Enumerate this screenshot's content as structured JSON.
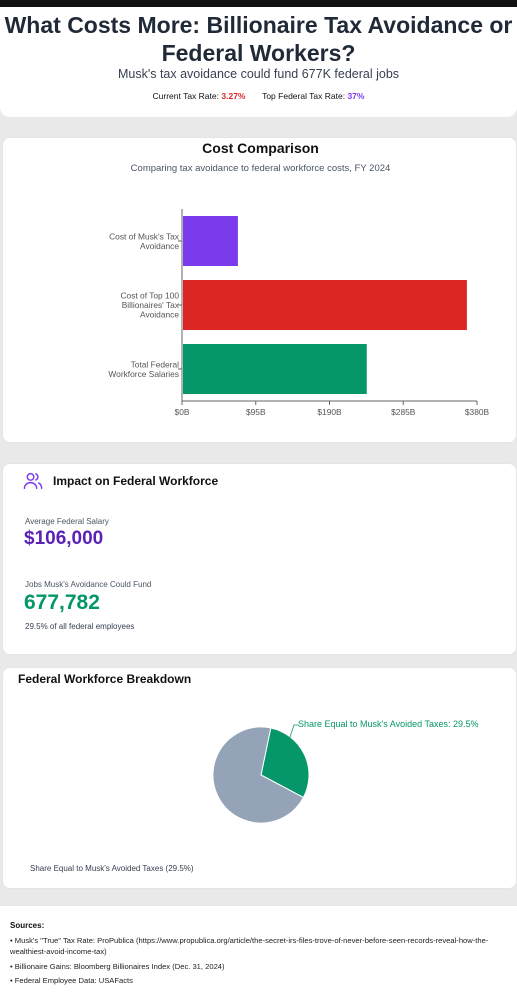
{
  "header": {
    "title": "What Costs More: Billionaire Tax Avoidance or Federal Workers?",
    "subtitle": "Musk's tax avoidance could fund 677K federal jobs",
    "current_rate_label": "Current Tax Rate:",
    "current_rate_value": "3.27%",
    "top_rate_label": "Top Federal Tax Rate:",
    "top_rate_value": "37%"
  },
  "chart_data": {
    "type": "bar",
    "orientation": "horizontal",
    "title": "Cost Comparison",
    "subtitle": "Comparing tax avoidance to federal workforce costs, FY 2024",
    "categories": [
      "Cost of Musk's Tax Avoidance",
      "Cost of Top 100 Billionaires' Tax Avoidance",
      "Total Federal Workforce Salaries"
    ],
    "category_lines": [
      [
        "Cost of Musk's Tax",
        "Avoidance"
      ],
      [
        "Cost of Top 100",
        "Billionaires' Tax",
        "Avoidance"
      ],
      [
        "Total Federal",
        "Workforce Salaries"
      ]
    ],
    "values": [
      72,
      367,
      238
    ],
    "colors": [
      "#7c3aed",
      "#dc2626",
      "#059669"
    ],
    "xlim": [
      0,
      380
    ],
    "ticks": [
      0,
      95,
      190,
      285,
      380
    ],
    "tick_labels": [
      "$0B",
      "$95B",
      "$190B",
      "$285B",
      "$380B"
    ],
    "grid": false
  },
  "impact": {
    "title": "Impact on Federal Workforce",
    "icon": "users-icon",
    "salary_label": "Average Federal Salary",
    "salary_value": "$106,000",
    "jobs_label": "Jobs Musk's Avoidance Could Fund",
    "jobs_value": "677,782",
    "jobs_pct": "29.5% of all federal employees"
  },
  "pie": {
    "title": "Federal Workforce Breakdown",
    "slices": [
      {
        "label": "Share Equal to Musk's Avoided Taxes",
        "value": 29.5,
        "color": "#059669"
      },
      {
        "label": "",
        "value": 70.5,
        "color": "#94a3b8"
      }
    ],
    "slice_label": "Share Equal to Musk's Avoided Taxes: 29.5%",
    "legend": "Share Equal to Musk's Avoided Taxes (29.5%)"
  },
  "sources": {
    "title": "Sources:",
    "items": [
      "• Musk's \"True\" Tax Rate: ProPublica (https://www.propublica.org/article/the-secret-irs-files-trove-of-never-before-seen-records-reveal-how-the-wealthiest-avoid-income-tax)",
      "• Billionaire Gains: Bloomberg Billionaires Index (Dec. 31, 2024)",
      "• Federal Employee Data: USAFacts"
    ]
  }
}
